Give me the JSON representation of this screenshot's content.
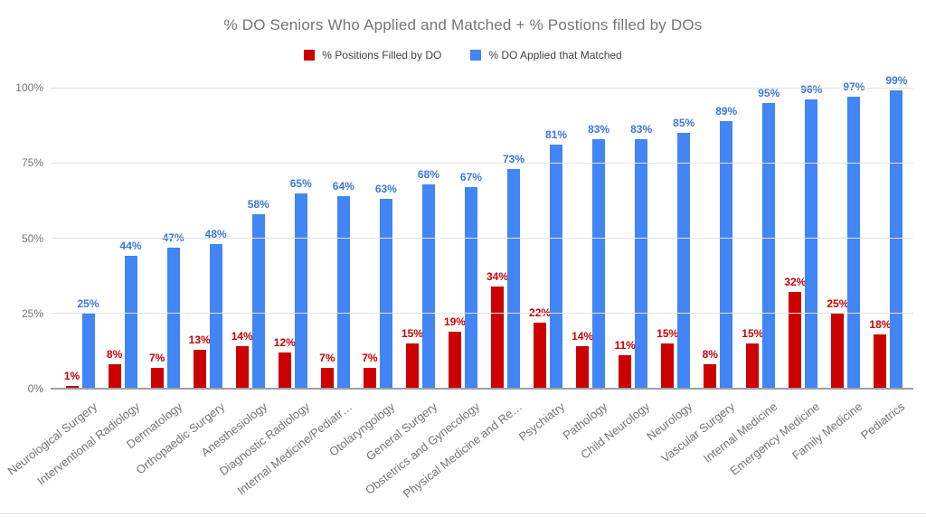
{
  "chart_data": {
    "type": "bar",
    "title": "% DO Seniors Who Applied and Matched + % Postions filled by DOs",
    "legend_position": "top",
    "grid": true,
    "ylim": [
      0,
      100
    ],
    "value_suffix": "%",
    "y_ticks": [
      {
        "label": "0%",
        "value": 0
      },
      {
        "label": "25%",
        "value": 25
      },
      {
        "label": "50%",
        "value": 50
      },
      {
        "label": "75%",
        "value": 75
      },
      {
        "label": "100%",
        "value": 100
      }
    ],
    "categories": [
      "Neurological Surgery",
      "Interventional Radiology",
      "Dermatology",
      "Orthopaedic Surgery",
      "Anesthesiology",
      "Diagnostic Radiology",
      "Internal Medicine/Pediatr…",
      "Otolaryngology",
      "General Surgery",
      "Obstetrics and Gynecology",
      "Physical Medicine and Re…",
      "Psychiatry",
      "Pathology",
      "Child Neurology",
      "Neurology",
      "Vascular Surgery",
      "Internal Medicine",
      "Emergency Medicine",
      "Family Medicine",
      "Pediatrics"
    ],
    "series": [
      {
        "name": "% Positions Filled by DO",
        "color": "#cc0000",
        "label_color": "#cc0000",
        "values": [
          1,
          8,
          7,
          13,
          14,
          12,
          7,
          7,
          15,
          19,
          34,
          22,
          14,
          11,
          15,
          8,
          15,
          32,
          25,
          18
        ]
      },
      {
        "name": "% DO Applied that Matched",
        "color": "#4285f4",
        "label_color": "#3c78d8",
        "values": [
          25,
          44,
          47,
          48,
          58,
          65,
          64,
          63,
          68,
          67,
          73,
          81,
          83,
          83,
          85,
          89,
          95,
          96,
          97,
          99
        ]
      }
    ],
    "colors": {
      "title_text": "#757575",
      "legend_text": "#424242",
      "axis_text": "#757575",
      "gridline": "#e2e2e2",
      "baseline": "#9aa0a6"
    }
  }
}
